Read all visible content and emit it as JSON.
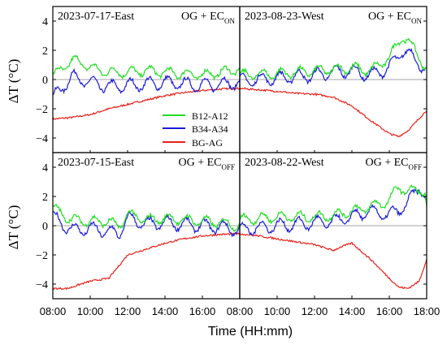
{
  "chart_data": {
    "type": "line",
    "x_axis_label": "Time (HH:mm)",
    "y_axis_label": "ΔT (°C)",
    "x_tick_labels": [
      "08:00",
      "10:00",
      "12:00",
      "14:00",
      "16:00",
      "08:00",
      "10:00",
      "12:00",
      "14:00",
      "16:00",
      "18:00"
    ],
    "y_tick_labels": [
      "4",
      "2",
      "0",
      "−2",
      "−4"
    ],
    "ylim": [
      -5,
      5
    ],
    "xlim_hours": [
      8,
      18
    ],
    "zero_line": true,
    "legend": {
      "placement": "top-left panel, lower-right",
      "entries": [
        {
          "name": "B12-A12",
          "color": "#22dd22"
        },
        {
          "name": "B34-A34",
          "color": "#1a1ad9"
        },
        {
          "name": "BG-AG",
          "color": "#e8201a"
        }
      ]
    },
    "panels": [
      {
        "title": "2023-07-17-East",
        "tag_main": "OG + EC",
        "tag_sub": "ON",
        "series": {
          "B12-A12": {
            "x": [
              8,
              9,
              9.5,
              10,
              11,
              12,
              13,
              14,
              15,
              16,
              17,
              17.9
            ],
            "y": [
              0.2,
              1.3,
              1.2,
              0.8,
              0.5,
              0.5,
              0.6,
              0.5,
              0.4,
              0.3,
              0.5,
              0.7
            ]
          },
          "B34-A34": {
            "x": [
              8,
              9,
              10,
              11,
              12,
              13,
              14,
              15,
              16,
              17,
              17.9
            ],
            "y": [
              -1.3,
              0.2,
              -0.2,
              -0.5,
              -0.4,
              -0.3,
              -0.2,
              -0.3,
              -0.4,
              -0.3,
              -0.2
            ]
          },
          "BG-AG": {
            "x": [
              8,
              9,
              10,
              11,
              12,
              13,
              14,
              15,
              16,
              17,
              18
            ],
            "y": [
              -2.7,
              -2.6,
              -2.4,
              -2.0,
              -1.7,
              -1.4,
              -1.1,
              -0.9,
              -0.75,
              -0.65,
              -0.6
            ]
          }
        }
      },
      {
        "title": "2023-08-23-West",
        "tag_main": "OG + EC",
        "tag_sub": "ON",
        "series": {
          "B12-A12": {
            "x": [
              8,
              10,
              12,
              13,
              14,
              15,
              16,
              16.7,
              17.2,
              17.6,
              18
            ],
            "y": [
              0.3,
              0.4,
              0.6,
              0.7,
              0.8,
              0.6,
              1.5,
              3.0,
              2.3,
              1.6,
              0.6
            ]
          },
          "B34-A34": {
            "x": [
              8,
              10,
              12,
              13,
              14,
              15,
              16,
              16.7,
              17.2,
              17.6,
              18
            ],
            "y": [
              -0.1,
              0.1,
              0.3,
              0.5,
              0.6,
              0.3,
              0.8,
              2.0,
              1.6,
              1.2,
              0.4
            ]
          },
          "BG-AG": {
            "x": [
              8,
              9,
              10,
              11,
              12,
              13,
              14,
              15,
              16,
              16.5,
              17,
              18
            ],
            "y": [
              -0.6,
              -0.7,
              -0.8,
              -0.95,
              -1.0,
              -1.2,
              -1.8,
              -2.8,
              -3.7,
              -3.9,
              -3.5,
              -2.1
            ]
          }
        }
      },
      {
        "title": "2023-07-15-East",
        "tag_main": "OG + EC",
        "tag_sub": "OFF",
        "series": {
          "B12-A12": {
            "x": [
              8,
              9,
              10,
              11,
              11.5,
              12,
              13,
              14,
              15,
              16,
              17,
              18
            ],
            "y": [
              1.2,
              0.4,
              0.3,
              0.3,
              -0.1,
              0.8,
              0.4,
              0.5,
              0.4,
              0.3,
              0.2,
              0.0
            ]
          },
          "B34-A34": {
            "x": [
              8,
              9,
              10,
              11,
              11.5,
              12,
              13,
              14,
              15,
              16,
              17,
              18
            ],
            "y": [
              0.6,
              -0.3,
              -0.2,
              -0.4,
              -0.6,
              0.5,
              0.1,
              0.2,
              0.1,
              0.0,
              -0.1,
              -0.3
            ]
          },
          "BG-AG": {
            "x": [
              8,
              8.8,
              9.5,
              10,
              11,
              12,
              12.5,
              13,
              14,
              15,
              16,
              17,
              18
            ],
            "y": [
              -4.3,
              -4.3,
              -4.0,
              -3.8,
              -3.6,
              -2.0,
              -1.8,
              -1.6,
              -1.2,
              -0.9,
              -0.7,
              -0.6,
              -0.55
            ]
          }
        }
      },
      {
        "title": "2023-08-22-West",
        "tag_main": "OG + EC",
        "tag_sub": "OFF",
        "series": {
          "B12-A12": {
            "x": [
              8,
              10,
              12,
              13,
              14,
              15,
              16,
              16.5,
              17,
              17.6,
              17.9,
              18
            ],
            "y": [
              0.4,
              0.6,
              0.6,
              0.7,
              1.0,
              1.3,
              1.7,
              2.7,
              2.3,
              2.5,
              2.3,
              1.2
            ]
          },
          "B34-A34": {
            "x": [
              8,
              10,
              12,
              13,
              14,
              15,
              16,
              16.5,
              17,
              17.6,
              17.9,
              18
            ],
            "y": [
              -0.3,
              0.0,
              0.2,
              0.3,
              0.6,
              1.0,
              0.7,
              1.1,
              1.5,
              2.8,
              2.0,
              1.1
            ]
          },
          "BG-AG": {
            "x": [
              8,
              9,
              10,
              11,
              12,
              13,
              13.5,
              14,
              15,
              16,
              16.5,
              17,
              17.6,
              18
            ],
            "y": [
              -0.55,
              -0.7,
              -0.9,
              -1.1,
              -1.3,
              -1.7,
              -1.4,
              -1.2,
              -2.3,
              -3.6,
              -4.2,
              -4.3,
              -3.8,
              -2.3
            ]
          }
        }
      }
    ]
  }
}
